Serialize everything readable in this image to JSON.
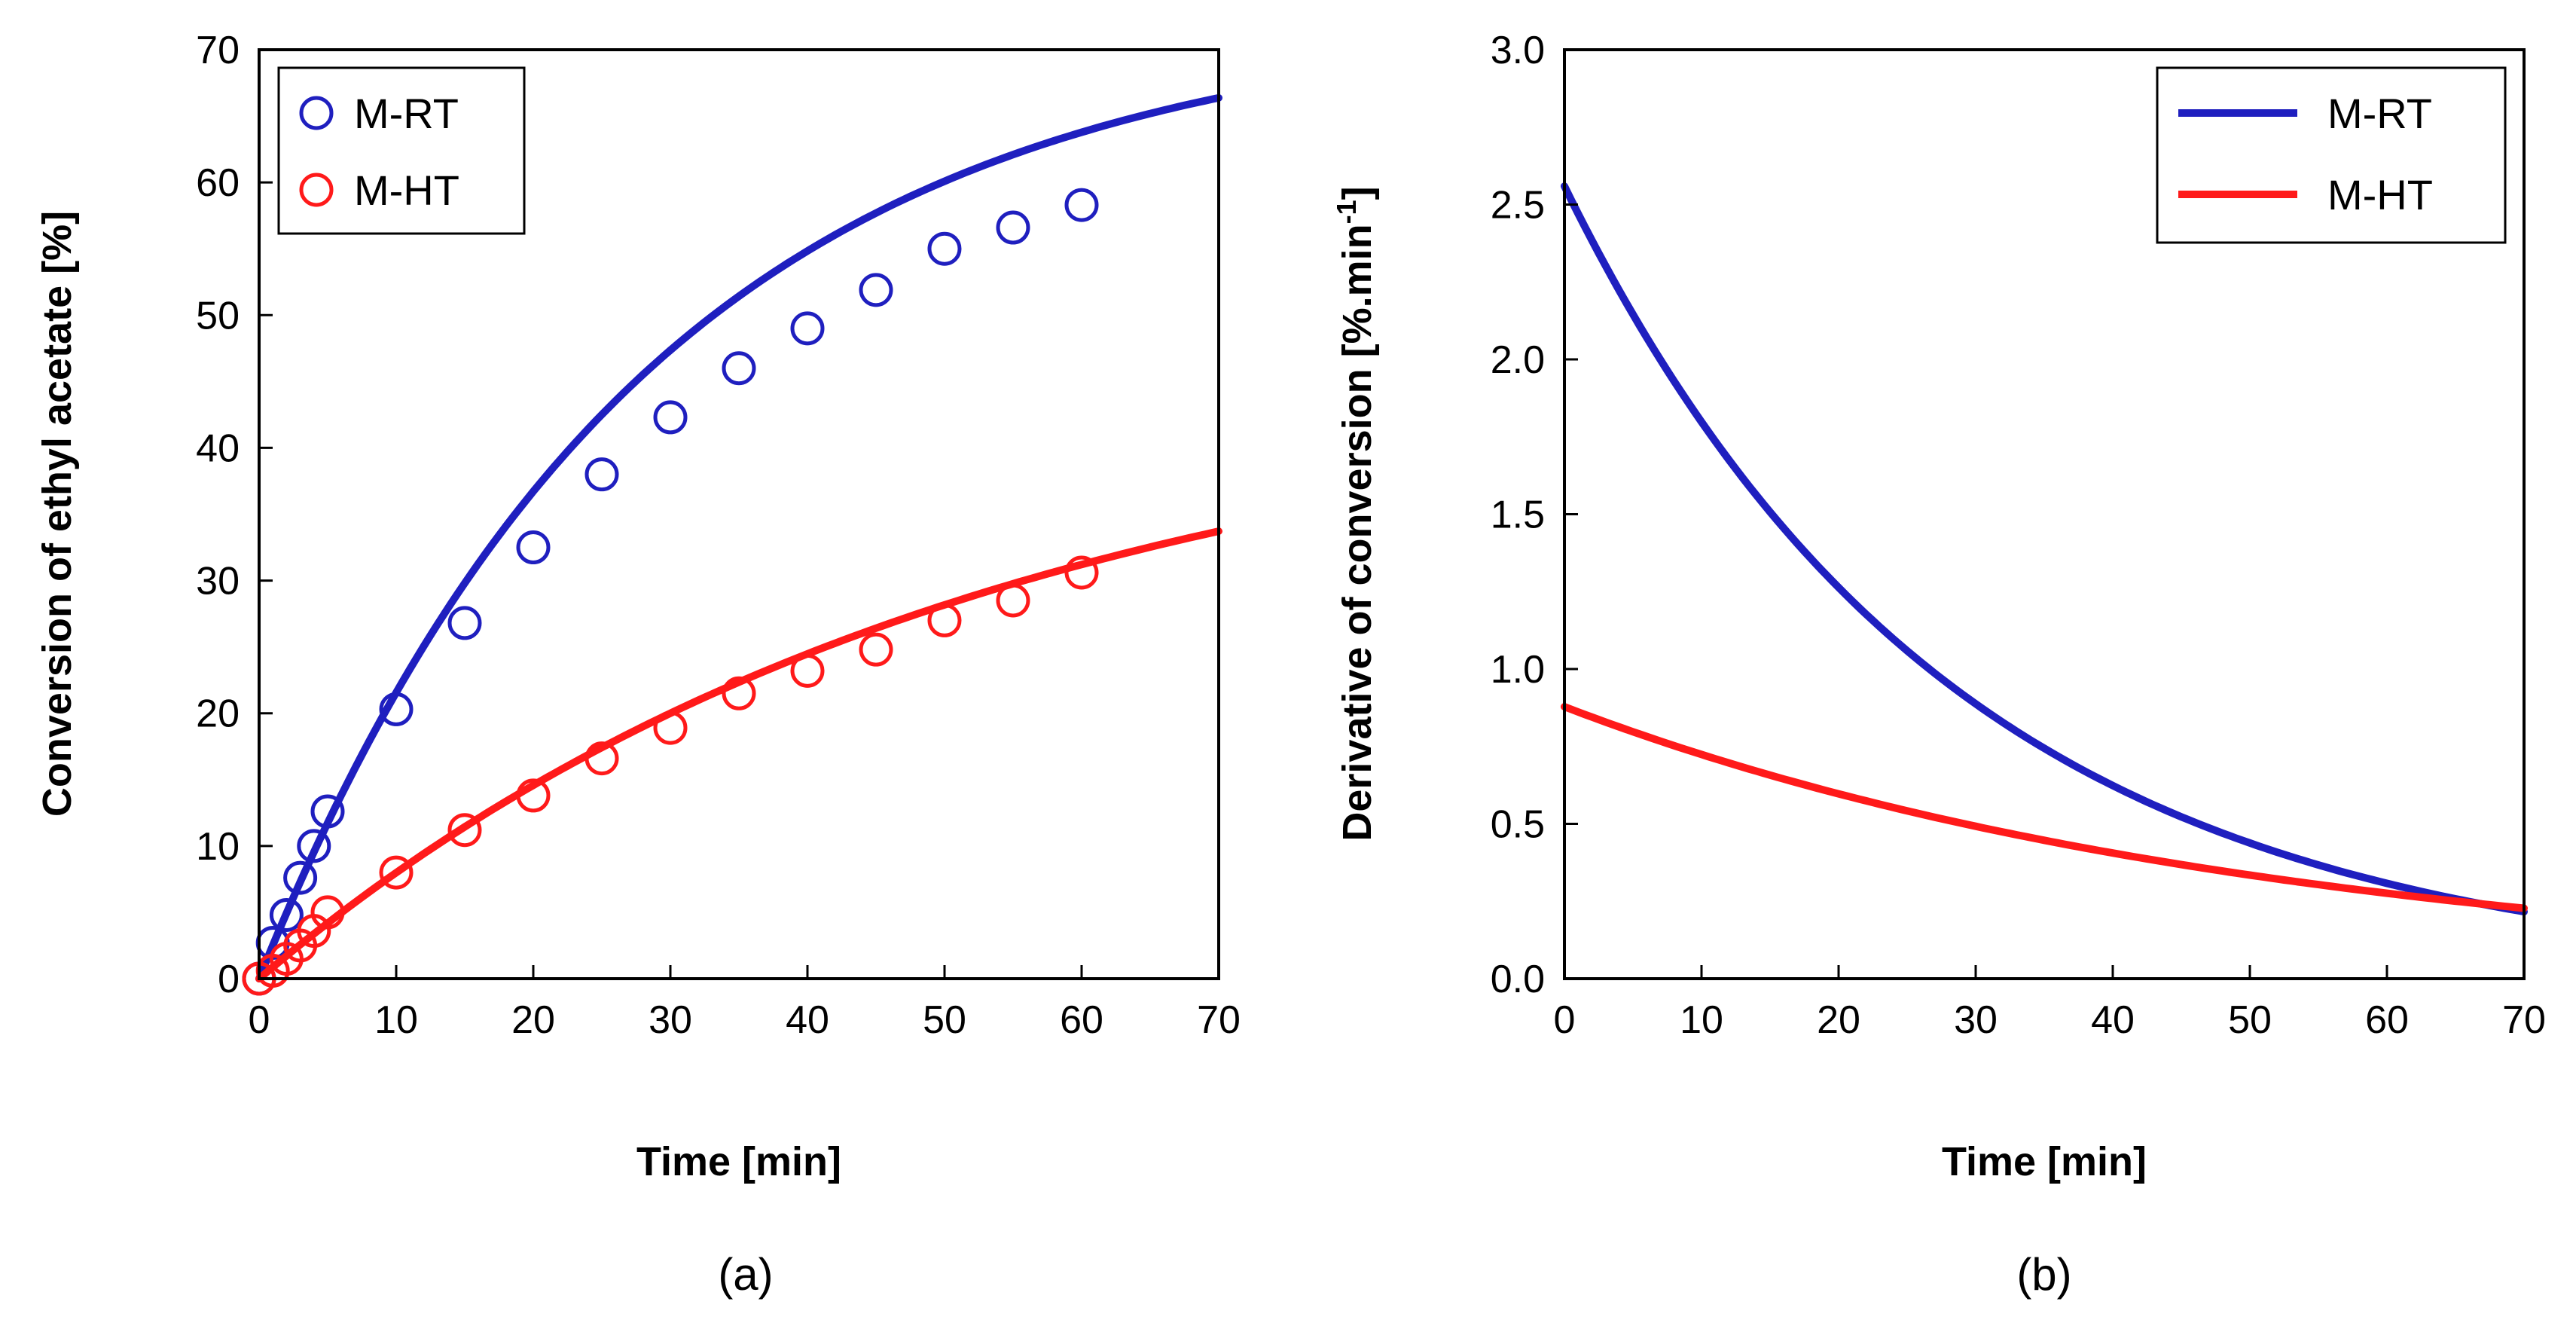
{
  "chart_data": [
    {
      "type": "scatter",
      "panel_label": "(a)",
      "xlabel": "Time [min]",
      "ylabel": "Conversion of ethyl acetate [%]",
      "xlim": [
        0,
        70
      ],
      "ylim": [
        0,
        70
      ],
      "xticks": [
        "0",
        "10",
        "20",
        "30",
        "40",
        "50",
        "60",
        "70"
      ],
      "yticks": [
        "0",
        "10",
        "20",
        "30",
        "40",
        "50",
        "60",
        "70"
      ],
      "legend_position": "top-left",
      "grid": false,
      "series": [
        {
          "name": "M-RT",
          "color": "#1f1fbf",
          "marker": "open-circle",
          "fit_line": true,
          "x": [
            0,
            1,
            2,
            3,
            4,
            5,
            10,
            15,
            20,
            25,
            30,
            35,
            40,
            45,
            50,
            55,
            60
          ],
          "y": [
            0,
            2.7,
            4.8,
            7.6,
            10.0,
            12.6,
            20.3,
            26.8,
            32.5,
            38.0,
            42.3,
            46.0,
            49.0,
            51.9,
            55.0,
            56.6,
            58.3
          ],
          "fit": {
            "model": "a*(1-exp(-k*t))",
            "a": 72.5,
            "k": 0.0353,
            "t_max": 70
          }
        },
        {
          "name": "M-HT",
          "color": "#ff1a1a",
          "marker": "open-circle",
          "fit_line": true,
          "x": [
            0,
            1,
            2,
            3,
            4,
            5,
            10,
            15,
            20,
            25,
            30,
            35,
            40,
            45,
            50,
            55,
            60
          ],
          "y": [
            0,
            0.6,
            1.5,
            2.5,
            3.6,
            5.0,
            8.0,
            11.2,
            13.8,
            16.6,
            18.9,
            21.5,
            23.2,
            24.8,
            27.0,
            28.5,
            30.6
          ],
          "fit": {
            "model": "a*(1-exp(-k*t))",
            "a": 45.5,
            "k": 0.0193,
            "t_max": 70
          }
        }
      ]
    },
    {
      "type": "line",
      "panel_label": "(b)",
      "xlabel": "Time [min]",
      "ylabel": "Derivative of conversion [%.min",
      "ylabel_superscript": "-1",
      "ylabel_close": "]",
      "xlim": [
        0,
        70
      ],
      "ylim": [
        0,
        3.0
      ],
      "xticks": [
        "0",
        "10",
        "20",
        "30",
        "40",
        "50",
        "60",
        "70"
      ],
      "yticks": [
        "0.0",
        "0.5",
        "1.0",
        "1.5",
        "2.0",
        "2.5",
        "3.0"
      ],
      "legend_position": "top-right",
      "grid": false,
      "series": [
        {
          "name": "M-RT",
          "color": "#1f1fbf",
          "curve": {
            "model": "a*k*exp(-k*t)",
            "a": 72.5,
            "k": 0.0353,
            "t_max": 70
          }
        },
        {
          "name": "M-HT",
          "color": "#ff1a1a",
          "curve": {
            "model": "a*k*exp(-k*t)",
            "a": 45.5,
            "k": 0.0193,
            "t_max": 70
          }
        }
      ]
    }
  ]
}
